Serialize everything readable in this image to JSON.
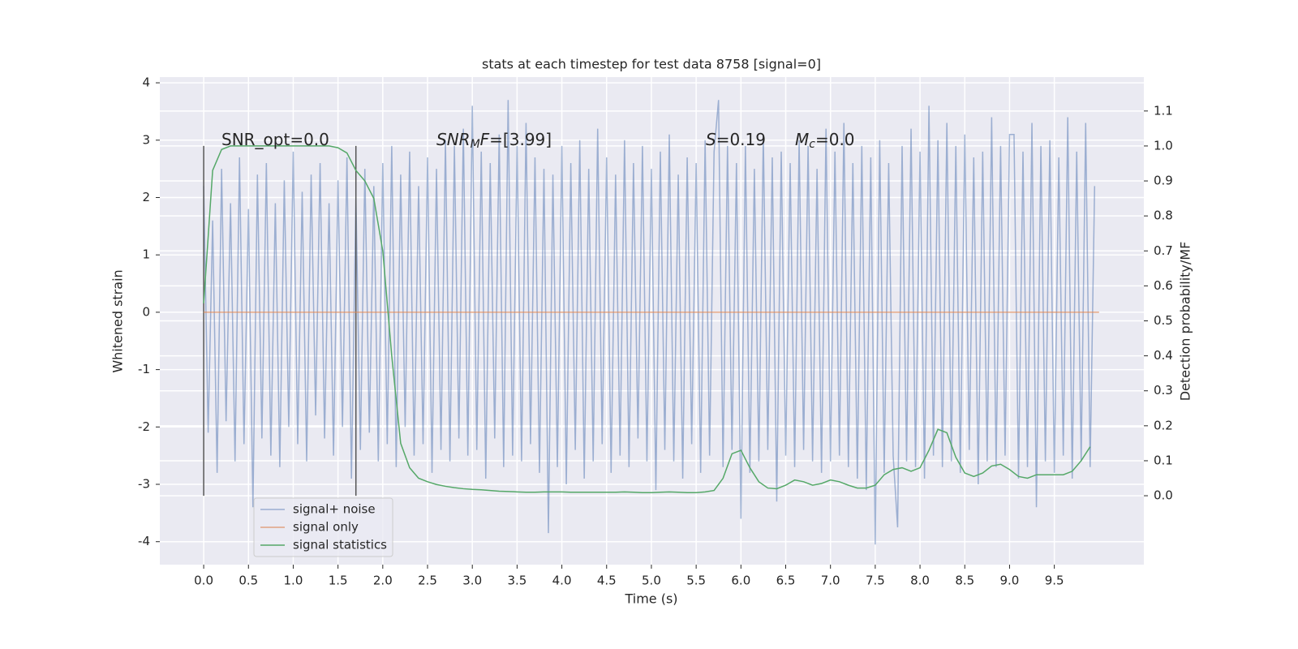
{
  "chart_data": {
    "type": "line",
    "title": "stats at each timestep for test data 8758 [signal=0]",
    "xlabel": "Time (s)",
    "ylabel": "Whitened strain",
    "y2label": "Detection probability/MF",
    "xlim": [
      -0.49,
      10.5
    ],
    "ylim": [
      -4.4,
      4.1
    ],
    "y2lim": [
      -0.197,
      1.197
    ],
    "xticks": [
      {
        "value": 0,
        "label": "0.0"
      },
      0.5,
      {
        "value": 1,
        "label": "1.0"
      },
      1.5,
      {
        "value": 2,
        "label": "2.0"
      },
      2.5,
      {
        "value": 3,
        "label": "3.0"
      },
      3.5,
      {
        "value": 4,
        "label": "4.0"
      },
      4.5,
      {
        "value": 5,
        "label": "5.0"
      },
      5.5,
      {
        "value": 6,
        "label": "6.0"
      },
      6.5,
      {
        "value": 7,
        "label": "7.0"
      },
      7.5,
      {
        "value": 8,
        "label": "8.0"
      },
      8.5,
      {
        "value": 9,
        "label": "9.0"
      },
      9.5
    ],
    "yticks": [
      -4,
      -3,
      -2,
      -1,
      0,
      1,
      2,
      3,
      4
    ],
    "y2ticks": [
      {
        "value": 0,
        "label": "0.0"
      },
      0.1,
      0.2,
      0.3,
      0.4,
      0.5,
      0.6,
      0.7,
      0.8,
      0.9,
      {
        "value": 1,
        "label": "1.0"
      },
      1.1
    ],
    "grid": true,
    "legend": "lower left",
    "annotations": [
      [
        {
          "t": "SNR_opt=0.0",
          "style": "normal"
        }
      ],
      [
        {
          "t": "SNR",
          "style": "italic"
        },
        {
          "t": "M",
          "style": "sub"
        },
        {
          "t": "F",
          "style": "italic"
        },
        {
          "t": "=[3.99]",
          "style": "normal"
        }
      ],
      [
        {
          "t": "S",
          "style": "italic"
        },
        {
          "t": "=0.19",
          "style": "normal"
        }
      ],
      [
        {
          "t": "M",
          "style": "italic"
        },
        {
          "t": "c",
          "style": "sub"
        },
        {
          "t": "=0.0",
          "style": "normal"
        }
      ]
    ],
    "vlines": {
      "x": [
        0,
        1.7
      ],
      "ymin": -3.2,
      "ymax": 2.9,
      "color": "#555555"
    },
    "series": [
      {
        "name": "signal+ noise",
        "color": "#4c72b0",
        "opacity": 0.5,
        "x": [
          0,
          0.05,
          0.1,
          0.15,
          0.2,
          0.25,
          0.3,
          0.35,
          0.4,
          0.45,
          0.5,
          0.55,
          0.6,
          0.65,
          0.7,
          0.75,
          0.8,
          0.85,
          0.9,
          0.95,
          1,
          1.05,
          1.1,
          1.15,
          1.2,
          1.25,
          1.3,
          1.35,
          1.4,
          1.45,
          1.5,
          1.55,
          1.6,
          1.65,
          1.7,
          1.75,
          1.8,
          1.85,
          1.9,
          1.95,
          2,
          2.05,
          2.1,
          2.15,
          2.2,
          2.25,
          2.3,
          2.35,
          2.4,
          2.45,
          2.5,
          2.55,
          2.6,
          2.65,
          2.7,
          2.75,
          2.8,
          2.85,
          2.9,
          2.95,
          3,
          3.05,
          3.1,
          3.15,
          3.2,
          3.25,
          3.3,
          3.35,
          3.4,
          3.45,
          3.5,
          3.55,
          3.6,
          3.65,
          3.7,
          3.75,
          3.8,
          3.85,
          3.9,
          3.95,
          4,
          4.05,
          4.1,
          4.15,
          4.2,
          4.25,
          4.3,
          4.35,
          4.4,
          4.45,
          4.5,
          4.55,
          4.6,
          4.65,
          4.7,
          4.75,
          4.8,
          4.85,
          4.9,
          4.95,
          5,
          5.05,
          5.1,
          5.15,
          5.2,
          5.25,
          5.3,
          5.35,
          5.4,
          5.45,
          5.5,
          5.55,
          5.6,
          5.65,
          5.7,
          5.75,
          5.8,
          5.85,
          5.9,
          5.95,
          6,
          6.05,
          6.1,
          6.15,
          6.2,
          6.25,
          6.3,
          6.35,
          6.4,
          6.45,
          6.5,
          6.55,
          6.6,
          6.65,
          6.7,
          6.75,
          6.8,
          6.85,
          6.9,
          6.95,
          7,
          7.05,
          7.1,
          7.15,
          7.2,
          7.25,
          7.3,
          7.35,
          7.4,
          7.45,
          7.5,
          7.55,
          7.6,
          7.65,
          7.7,
          7.75,
          7.8,
          7.85,
          7.9,
          7.95,
          8,
          8.05,
          8.1,
          8.15,
          8.2,
          8.25,
          8.3,
          8.35,
          8.4,
          8.45,
          8.5,
          8.55,
          8.6,
          8.65,
          8.7,
          8.75,
          8.8,
          8.85,
          8.9,
          8.95,
          9,
          9.05,
          9.1,
          9.15,
          9.2,
          9.25,
          9.3,
          9.35,
          9.4,
          9.45,
          9.5,
          9.55,
          9.6,
          9.65,
          9.7,
          9.75,
          9.8,
          9.85,
          9.9,
          9.95
        ],
        "values": [
          2.2,
          -2.1,
          1.6,
          -2.8,
          2.5,
          -1.9,
          1.9,
          -2.6,
          2.7,
          -2.3,
          1.8,
          -3.4,
          2.4,
          -2.2,
          2.6,
          -2.5,
          1.9,
          -2.7,
          2.3,
          -2.0,
          2.8,
          -2.3,
          2.1,
          -2.6,
          2.4,
          -1.8,
          2.6,
          -2.2,
          1.9,
          -2.5,
          2.3,
          -2.0,
          2.7,
          -2.9,
          2.0,
          -2.4,
          2.5,
          -2.1,
          2.2,
          -2.6,
          2.6,
          -2.3,
          2.9,
          -2.7,
          2.4,
          -2.0,
          2.8,
          -2.5,
          2.2,
          -2.3,
          2.7,
          -2.8,
          2.5,
          -2.4,
          3.0,
          -2.6,
          2.9,
          -2.2,
          3.2,
          -2.5,
          3.6,
          -2.4,
          2.8,
          -2.9,
          2.6,
          -2.2,
          3.1,
          -2.7,
          3.7,
          -2.5,
          2.9,
          -2.6,
          3.3,
          -2.3,
          2.7,
          -2.8,
          2.5,
          -3.85,
          2.4,
          -2.7,
          2.9,
          -3.0,
          2.6,
          -2.4,
          3.0,
          -2.9,
          2.5,
          -2.6,
          3.2,
          -2.3,
          2.7,
          -2.8,
          2.4,
          -2.5,
          3.0,
          -2.7,
          2.6,
          -2.2,
          2.9,
          -2.6,
          2.5,
          -3.1,
          2.8,
          -2.4,
          3.1,
          -2.6,
          2.4,
          -2.9,
          2.7,
          -2.3,
          2.6,
          -2.8,
          3.0,
          -2.5,
          2.8,
          3.7,
          -2.7,
          2.9,
          -2.4,
          2.6,
          -3.6,
          2.9,
          -2.8,
          2.5,
          -2.6,
          3.1,
          -2.4,
          2.7,
          -3.3,
          2.8,
          -2.5,
          2.6,
          -2.7,
          3.0,
          -2.4,
          2.9,
          -2.6,
          2.5,
          -2.8,
          3.2,
          -2.6,
          2.8,
          -2.5,
          3.3,
          -2.7,
          2.6,
          -2.9,
          2.9,
          -3.1,
          2.7,
          -4.05,
          3.0,
          -2.8,
          2.6,
          -2.5,
          -3.75,
          2.9,
          -2.6,
          3.2,
          -2.7,
          2.8,
          -2.9,
          3.6,
          -2.5,
          3.0,
          -2.7,
          3.3,
          -2.6,
          2.9,
          -2.8,
          3.1,
          -2.4,
          2.7,
          -3.0,
          2.8,
          -2.6,
          3.4,
          -2.7,
          2.9,
          -2.5,
          3.1,
          3.1,
          -2.9,
          2.8,
          -2.7,
          3.3,
          -3.4,
          2.9,
          -2.6,
          3.0,
          -2.8,
          2.7,
          -2.5,
          3.4,
          -2.9,
          2.8,
          -2.6,
          3.3,
          -2.7,
          2.2
        ]
      },
      {
        "name": "signal only",
        "color": "#dd8452",
        "opacity": 0.7,
        "x": [
          0,
          10
        ],
        "values": [
          0,
          0
        ]
      },
      {
        "name": "signal statistics",
        "color": "#55a868",
        "opacity": 1,
        "axis": "y2",
        "x": [
          0,
          0.1,
          0.2,
          0.3,
          0.4,
          0.5,
          0.6,
          0.7,
          0.8,
          0.9,
          1,
          1.1,
          1.2,
          1.3,
          1.4,
          1.5,
          1.6,
          1.7,
          1.8,
          1.9,
          2,
          2.1,
          2.2,
          2.3,
          2.4,
          2.5,
          2.6,
          2.7,
          2.8,
          2.9,
          3,
          3.1,
          3.2,
          3.3,
          3.4,
          3.5,
          3.6,
          3.7,
          3.8,
          3.9,
          4,
          4.1,
          4.2,
          4.3,
          4.4,
          4.5,
          4.6,
          4.7,
          4.8,
          4.9,
          5,
          5.1,
          5.2,
          5.3,
          5.4,
          5.5,
          5.6,
          5.7,
          5.8,
          5.9,
          6,
          6.1,
          6.2,
          6.3,
          6.4,
          6.5,
          6.6,
          6.7,
          6.8,
          6.9,
          7,
          7.1,
          7.2,
          7.3,
          7.4,
          7.5,
          7.6,
          7.7,
          7.8,
          7.9,
          8,
          8.1,
          8.2,
          8.3,
          8.4,
          8.5,
          8.6,
          8.7,
          8.8,
          8.9,
          9,
          9.1,
          9.2,
          9.3,
          9.4,
          9.5,
          9.6,
          9.7,
          9.8,
          9.9
        ],
        "values": [
          0.55,
          0.93,
          0.99,
          1.0,
          1.0,
          1.0,
          1.0,
          1.0,
          1.0,
          1.0,
          1.0,
          1.0,
          1.0,
          1.0,
          1.0,
          0.995,
          0.98,
          0.93,
          0.9,
          0.85,
          0.7,
          0.4,
          0.15,
          0.08,
          0.05,
          0.04,
          0.032,
          0.027,
          0.023,
          0.02,
          0.018,
          0.017,
          0.015,
          0.013,
          0.012,
          0.011,
          0.01,
          0.01,
          0.011,
          0.011,
          0.011,
          0.01,
          0.01,
          0.01,
          0.01,
          0.01,
          0.01,
          0.011,
          0.01,
          0.009,
          0.009,
          0.01,
          0.011,
          0.01,
          0.009,
          0.009,
          0.011,
          0.015,
          0.05,
          0.12,
          0.13,
          0.08,
          0.04,
          0.022,
          0.02,
          0.03,
          0.045,
          0.04,
          0.03,
          0.035,
          0.045,
          0.04,
          0.03,
          0.022,
          0.022,
          0.03,
          0.06,
          0.075,
          0.08,
          0.07,
          0.08,
          0.13,
          0.19,
          0.18,
          0.11,
          0.065,
          0.055,
          0.065,
          0.085,
          0.09,
          0.075,
          0.055,
          0.05,
          0.06,
          0.06,
          0.06,
          0.06,
          0.07,
          0.1,
          0.14
        ]
      }
    ]
  }
}
